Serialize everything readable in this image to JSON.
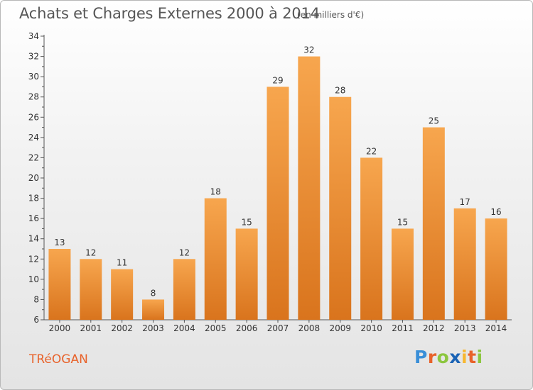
{
  "header": {
    "title": "Achats et Charges Externes 2000 à 2014",
    "subtitle": "(en milliers d'€)"
  },
  "footer": {
    "town": "TRéOGAN",
    "logo_letters": [
      "P",
      "r",
      "o",
      "x",
      "i",
      "t",
      "i"
    ],
    "logo_colors": [
      "#3a8fd8",
      "#e8622a",
      "#8cc63f",
      "#1a63b5",
      "#f7b731",
      "#e8622a",
      "#8cc63f"
    ]
  },
  "colors": {
    "bar_light": "#f7a64e",
    "bar_dark": "#d9741d",
    "axis": "#555555",
    "grid": "#cfcfcf"
  },
  "chart_data": {
    "type": "bar",
    "title": "Achats et Charges Externes 2000 à 2014",
    "subtitle": "(en milliers d'€)",
    "xlabel": "",
    "ylabel": "",
    "categories": [
      "2000",
      "2001",
      "2002",
      "2003",
      "2004",
      "2005",
      "2006",
      "2007",
      "2008",
      "2009",
      "2010",
      "2011",
      "2012",
      "2013",
      "2014"
    ],
    "values": [
      13,
      12,
      11,
      8,
      12,
      18,
      15,
      29,
      32,
      28,
      22,
      15,
      25,
      17,
      16
    ],
    "ylim": [
      6,
      34
    ],
    "yticks": [
      6,
      8,
      10,
      12,
      14,
      16,
      18,
      20,
      22,
      24,
      26,
      28,
      30,
      32,
      34
    ],
    "grid": false,
    "data_labels": true
  }
}
